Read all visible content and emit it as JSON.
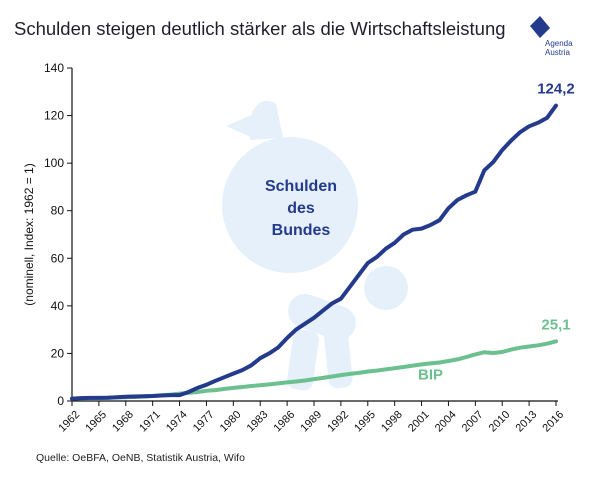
{
  "title": "Schulden steigen deutlich stärker als die Wirtschaftsleistung",
  "source": "Quelle:  OeBFA, OeNB, Statistik Austria, Wifo",
  "logo": {
    "line1": "Agenda",
    "line2": "Austria"
  },
  "colors": {
    "debt": "#243a8c",
    "gdp": "#6cc08f",
    "illustration": "#e6f0fa",
    "axis": "#111111"
  },
  "chart_data": {
    "type": "line",
    "title": "Schulden steigen deutlich stärker als die Wirtschaftsleistung",
    "ylabel": "(nominell, Index: 1962 = 1)",
    "xlabel": "",
    "ylim": [
      0,
      140
    ],
    "yticks": [
      0,
      20,
      40,
      60,
      80,
      100,
      120,
      140
    ],
    "xlim": [
      1962,
      2016
    ],
    "xticks": [
      "1962",
      "1965",
      "1968",
      "1971",
      "1974",
      "1977",
      "1980",
      "1983",
      "1986",
      "1989",
      "1992",
      "1995",
      "1998",
      "2001",
      "2004",
      "2007",
      "2010",
      "2013",
      "2016"
    ],
    "grid": false,
    "illustration_text": [
      "Schulden",
      "des",
      "Bundes"
    ],
    "x": [
      1962,
      1963,
      1964,
      1965,
      1966,
      1967,
      1968,
      1969,
      1970,
      1971,
      1972,
      1973,
      1974,
      1975,
      1976,
      1977,
      1978,
      1979,
      1980,
      1981,
      1982,
      1983,
      1984,
      1985,
      1986,
      1987,
      1988,
      1989,
      1990,
      1991,
      1992,
      1993,
      1994,
      1995,
      1996,
      1997,
      1998,
      1999,
      2000,
      2001,
      2002,
      2003,
      2004,
      2005,
      2006,
      2007,
      2008,
      2009,
      2010,
      2011,
      2012,
      2013,
      2014,
      2015,
      2016
    ],
    "series": [
      {
        "name": "Schulden des Bundes",
        "key": "debt",
        "end_label": "124,2",
        "values": [
          1.0,
          1.2,
          1.3,
          1.3,
          1.4,
          1.6,
          1.8,
          1.9,
          2.0,
          2.1,
          2.3,
          2.5,
          2.5,
          3.8,
          5.5,
          6.8,
          8.5,
          10.0,
          11.5,
          13.0,
          15.0,
          18.0,
          20.0,
          22.5,
          26.5,
          30.0,
          32.5,
          35.0,
          38.0,
          41.0,
          43.0,
          48.0,
          53.0,
          58.0,
          60.5,
          64.0,
          66.5,
          70.0,
          72.0,
          72.5,
          74.0,
          76.0,
          81.0,
          84.5,
          86.5,
          88.0,
          97.0,
          100.5,
          105.5,
          109.5,
          113.0,
          115.5,
          117.0,
          119.0,
          124.2
        ]
      },
      {
        "name": "BIP",
        "key": "gdp",
        "end_label": "25,1",
        "values": [
          1.0,
          1.1,
          1.2,
          1.3,
          1.4,
          1.5,
          1.6,
          1.7,
          1.9,
          2.1,
          2.4,
          2.7,
          3.1,
          3.4,
          3.8,
          4.3,
          4.6,
          5.1,
          5.5,
          5.9,
          6.3,
          6.6,
          7.0,
          7.4,
          7.8,
          8.2,
          8.6,
          9.2,
          9.7,
          10.3,
          10.9,
          11.4,
          11.8,
          12.4,
          12.8,
          13.3,
          13.8,
          14.3,
          14.9,
          15.4,
          15.8,
          16.2,
          16.8,
          17.5,
          18.5,
          19.6,
          20.5,
          20.2,
          20.6,
          21.6,
          22.4,
          22.9,
          23.4,
          24.1,
          25.1
        ]
      }
    ]
  }
}
